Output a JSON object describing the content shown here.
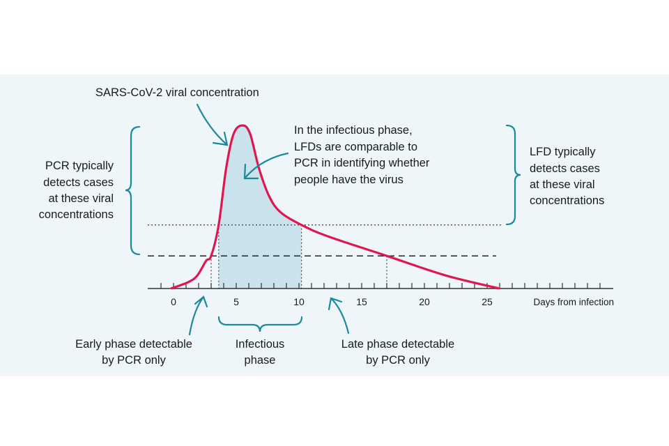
{
  "chart_data": {
    "type": "line",
    "xlabel": "Days from infection",
    "xticks": [
      0,
      5,
      10,
      15,
      20,
      25
    ],
    "xlim": [
      -2,
      35
    ],
    "series": [
      {
        "name": "SARS-CoV-2 viral concentration",
        "color": "#e0174f",
        "points": [
          [
            -0.2,
            0
          ],
          [
            1.2,
            0.04
          ],
          [
            1.9,
            0.08
          ],
          [
            2.6,
            0.17
          ],
          [
            3.0,
            0.2
          ],
          [
            3.6,
            0.39
          ],
          [
            4.2,
            0.74
          ],
          [
            4.8,
            0.95
          ],
          [
            5.5,
            1.0
          ],
          [
            6.1,
            0.95
          ],
          [
            6.8,
            0.74
          ],
          [
            7.6,
            0.57
          ],
          [
            8.5,
            0.47
          ],
          [
            10.2,
            0.39
          ],
          [
            12.3,
            0.32
          ],
          [
            17.0,
            0.2
          ],
          [
            21.7,
            0.08
          ],
          [
            26.0,
            0
          ]
        ]
      }
    ],
    "thresholds": [
      {
        "name": "LFD detection threshold",
        "style": "dotted",
        "level": 0.39
      },
      {
        "name": "PCR detection threshold",
        "style": "dashed",
        "level": 0.2
      }
    ],
    "infectious_phase_days": [
      3.6,
      10.2
    ],
    "pcr_window_days": [
      3.0,
      17.0
    ],
    "shade_color": "#c9e2ec",
    "accent_color": "#1a8a9a",
    "background_color": "#eef6fa"
  },
  "annotations": {
    "curve_label": "SARS-CoV-2 viral concentration",
    "infectious_note": [
      "In the infectious phase,",
      "LFDs are comparable to",
      "PCR in identifying whether",
      "people have the virus"
    ],
    "pcr_note": [
      "PCR typically",
      "detects cases",
      "at these viral",
      "concentrations"
    ],
    "lfd_note": [
      "LFD typically",
      "detects cases",
      "at these viral",
      "concentrations"
    ],
    "early_phase": [
      "Early phase detectable",
      "by PCR only"
    ],
    "infectious_phase": [
      "Infectious",
      "phase"
    ],
    "late_phase": [
      "Late phase detectable",
      "by PCR only"
    ]
  }
}
